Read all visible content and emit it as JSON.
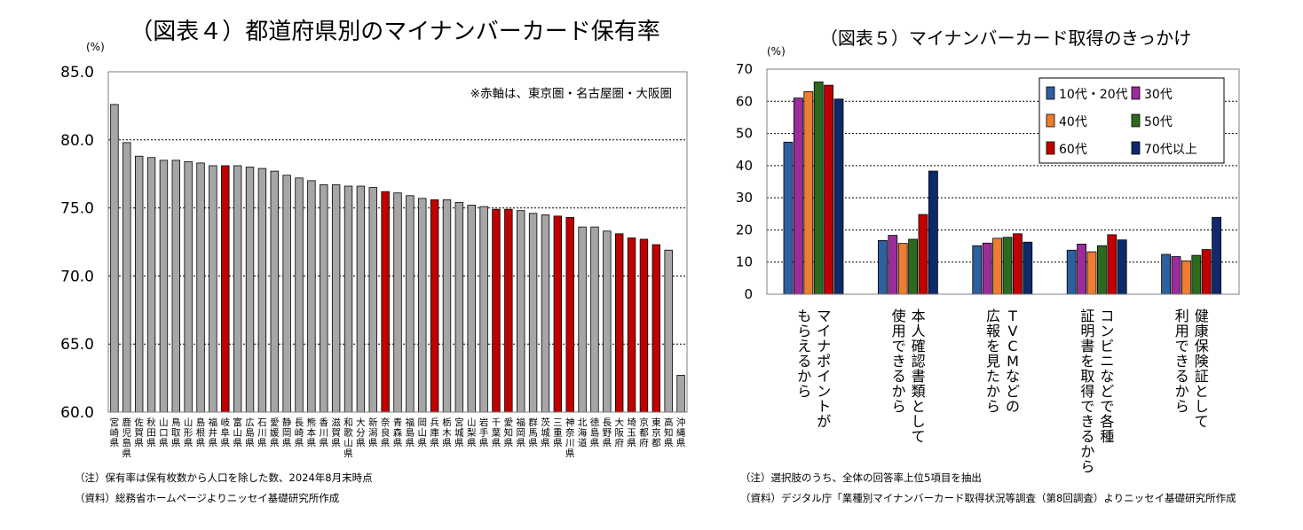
{
  "chart_data": [
    {
      "type": "bar",
      "title": "（図表４）都道府県別のマイナンバーカード保有率",
      "ylabel": "(%)",
      "ylim": [
        60,
        85
      ],
      "yticks": [
        "60.0",
        "65.0",
        "70.0",
        "75.0",
        "80.0",
        "85.0"
      ],
      "annotation": "※赤軸は、東京圏・名古屋圏・大阪圏",
      "categories": [
        "宮崎県",
        "鹿児島県",
        "佐賀県",
        "秋田県",
        "山口県",
        "鳥取県",
        "山形県",
        "島根県",
        "福井県",
        "岐阜県",
        "富山県",
        "広島県",
        "石川県",
        "愛媛県",
        "静岡県",
        "長崎県",
        "熊本県",
        "香川県",
        "滋賀県",
        "和歌山県",
        "大分県",
        "新潟県",
        "奈良県",
        "青森県",
        "福島県",
        "岡山県",
        "兵庫県",
        "栃木県",
        "宮城県",
        "山梨県",
        "岩手県",
        "千葉県",
        "愛知県",
        "福岡県",
        "群馬県",
        "茨城県",
        "三重県",
        "神奈川県",
        "北海道",
        "徳島県",
        "長野県",
        "大阪府",
        "埼玉県",
        "京都府",
        "東京都",
        "高知県",
        "沖縄県"
      ],
      "values": [
        82.6,
        79.8,
        78.8,
        78.7,
        78.5,
        78.5,
        78.4,
        78.3,
        78.1,
        78.1,
        78.1,
        78.0,
        77.9,
        77.7,
        77.4,
        77.2,
        77.0,
        76.7,
        76.7,
        76.6,
        76.6,
        76.5,
        76.2,
        76.1,
        75.9,
        75.7,
        75.6,
        75.6,
        75.4,
        75.2,
        75.1,
        74.9,
        74.9,
        74.8,
        74.6,
        74.5,
        74.4,
        74.3,
        73.6,
        73.6,
        73.3,
        73.1,
        72.8,
        72.7,
        72.3,
        71.9,
        62.7
      ],
      "highlight": [
        false,
        false,
        false,
        false,
        false,
        false,
        false,
        false,
        false,
        true,
        false,
        false,
        false,
        false,
        false,
        false,
        false,
        false,
        false,
        false,
        false,
        false,
        true,
        false,
        false,
        false,
        true,
        false,
        false,
        false,
        false,
        true,
        true,
        false,
        false,
        false,
        true,
        true,
        false,
        false,
        false,
        true,
        true,
        true,
        true,
        false,
        false
      ],
      "colors": {
        "default": "#a6a6a6",
        "highlight": "#c00000"
      },
      "notes": [
        "（注）保有率は保有枚数から人口を除した数、2024年8月末時点",
        "（資料）総務省ホームページよりニッセイ基礎研究所作成"
      ]
    },
    {
      "type": "bar",
      "title": "（図表５）マイナンバーカード取得のきっかけ",
      "ylabel": "(%)",
      "ylim": [
        0,
        70
      ],
      "yticks": [
        "0",
        "10",
        "20",
        "30",
        "40",
        "50",
        "60",
        "70"
      ],
      "categories": [
        [
          "マイナポイントが",
          "もらえるから"
        ],
        [
          "本人確認書類として",
          "使用できるから"
        ],
        [
          "TVCMなどの",
          "広報を見たから"
        ],
        [
          "コンビニなどで各種",
          "証明書を取得できるから"
        ],
        [
          "健康保険証として",
          "利用できるから"
        ]
      ],
      "series": [
        {
          "name": "10代・20代",
          "color": "#2e5f9e",
          "values": [
            47.3,
            16.7,
            15.1,
            13.7,
            12.4
          ]
        },
        {
          "name": "30代",
          "color": "#9b2d9b",
          "values": [
            61.0,
            18.3,
            15.9,
            15.6,
            11.7
          ]
        },
        {
          "name": "40代",
          "color": "#ed7d31",
          "values": [
            63.0,
            15.8,
            17.4,
            13.2,
            10.4
          ]
        },
        {
          "name": "50代",
          "color": "#2b6a1f",
          "values": [
            66.0,
            17.1,
            17.7,
            15.1,
            12.1
          ]
        },
        {
          "name": "60代",
          "color": "#c00000",
          "values": [
            65.0,
            24.8,
            18.8,
            18.5,
            13.9
          ]
        },
        {
          "name": "70代以上",
          "color": "#0e2a6b",
          "values": [
            60.7,
            38.3,
            16.2,
            16.9,
            23.9
          ]
        }
      ],
      "notes": [
        "（注）選択肢のうち、全体の回答率上位5項目を抽出",
        "（資料）デジタル庁「業種別マイナンバーカード取得状況等調査（第8回調査）よりニッセイ基礎研究所作成"
      ]
    }
  ]
}
